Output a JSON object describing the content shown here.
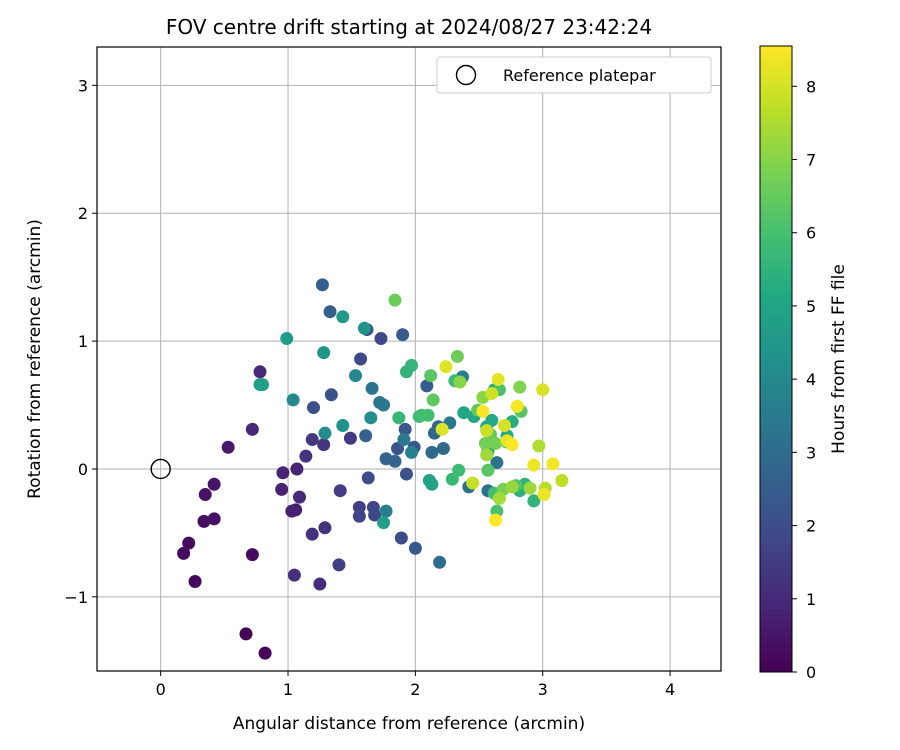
{
  "chart_data": {
    "type": "scatter",
    "title": "FOV centre drift starting at 2024/08/27 23:42:24",
    "xlabel": "Angular distance from reference (arcmin)",
    "ylabel": "Rotation from reference (arcmin)",
    "xlim": [
      -0.5,
      4.4
    ],
    "ylim": [
      -1.58,
      3.3
    ],
    "xticks": [
      0,
      1,
      2,
      3,
      4
    ],
    "xtick_labels": [
      "0",
      "1",
      "2",
      "3",
      "4"
    ],
    "yticks": [
      -1,
      0,
      1,
      2,
      3
    ],
    "ytick_labels": [
      "−1",
      "0",
      "1",
      "2",
      "3"
    ],
    "grid": true,
    "legend": {
      "position": "top-right",
      "entries": [
        "Reference platepar"
      ]
    },
    "reference_point": {
      "x": 0,
      "y": 0,
      "label": "Reference platepar",
      "marker": "open-circle"
    },
    "colorbar": {
      "label": "Hours from first FF file",
      "min": 0,
      "max": 8.55,
      "ticks": [
        0,
        1,
        2,
        3,
        4,
        5,
        6,
        7,
        8
      ],
      "tick_labels": [
        "0",
        "1",
        "2",
        "3",
        "4",
        "5",
        "6",
        "7",
        "8"
      ],
      "colormap": "viridis"
    },
    "points": [
      {
        "x": 0.67,
        "y": -1.29,
        "h": 0.05
      },
      {
        "x": 0.82,
        "y": -1.44,
        "h": 0.1
      },
      {
        "x": 0.27,
        "y": -0.88,
        "h": 0.15
      },
      {
        "x": 0.18,
        "y": -0.66,
        "h": 0.2
      },
      {
        "x": 0.22,
        "y": -0.58,
        "h": 0.25
      },
      {
        "x": 0.72,
        "y": -0.67,
        "h": 0.3
      },
      {
        "x": 0.34,
        "y": -0.41,
        "h": 0.35
      },
      {
        "x": 0.42,
        "y": -0.39,
        "h": 0.4
      },
      {
        "x": 0.35,
        "y": -0.2,
        "h": 0.45
      },
      {
        "x": 0.42,
        "y": -0.12,
        "h": 0.5
      },
      {
        "x": 0.53,
        "y": 0.17,
        "h": 0.6
      },
      {
        "x": 1.06,
        "y": -0.32,
        "h": 0.7
      },
      {
        "x": 1.03,
        "y": -0.33,
        "h": 0.75
      },
      {
        "x": 0.95,
        "y": -0.16,
        "h": 0.8
      },
      {
        "x": 0.96,
        "y": -0.03,
        "h": 0.85
      },
      {
        "x": 1.07,
        "y": 0.0,
        "h": 0.9
      },
      {
        "x": 0.72,
        "y": 0.31,
        "h": 0.95
      },
      {
        "x": 0.78,
        "y": 0.76,
        "h": 1.0
      },
      {
        "x": 1.09,
        "y": -0.22,
        "h": 1.05
      },
      {
        "x": 1.25,
        "y": -0.9,
        "h": 1.1
      },
      {
        "x": 1.05,
        "y": -0.83,
        "h": 1.15
      },
      {
        "x": 1.19,
        "y": -0.51,
        "h": 1.2
      },
      {
        "x": 1.29,
        "y": -0.46,
        "h": 1.25
      },
      {
        "x": 1.14,
        "y": 0.1,
        "h": 1.3
      },
      {
        "x": 1.28,
        "y": 0.19,
        "h": 1.35
      },
      {
        "x": 1.19,
        "y": 0.23,
        "h": 1.4
      },
      {
        "x": 1.49,
        "y": 0.24,
        "h": 1.45
      },
      {
        "x": 1.41,
        "y": -0.17,
        "h": 1.5
      },
      {
        "x": 1.4,
        "y": -0.75,
        "h": 1.55
      },
      {
        "x": 1.56,
        "y": -0.3,
        "h": 1.6
      },
      {
        "x": 1.56,
        "y": -0.37,
        "h": 1.7
      },
      {
        "x": 1.67,
        "y": -0.3,
        "h": 1.75
      },
      {
        "x": 1.68,
        "y": -0.36,
        "h": 1.8
      },
      {
        "x": 1.73,
        "y": 1.02,
        "h": 1.85
      },
      {
        "x": 1.57,
        "y": 0.86,
        "h": 1.9
      },
      {
        "x": 1.63,
        "y": -0.07,
        "h": 1.95
      },
      {
        "x": 1.89,
        "y": -0.54,
        "h": 2.0
      },
      {
        "x": 1.2,
        "y": 0.48,
        "h": 2.05
      },
      {
        "x": 1.34,
        "y": 0.58,
        "h": 2.1
      },
      {
        "x": 1.62,
        "y": 1.09,
        "h": 2.15
      },
      {
        "x": 1.93,
        "y": -0.04,
        "h": 2.2
      },
      {
        "x": 1.86,
        "y": 0.16,
        "h": 2.25
      },
      {
        "x": 1.92,
        "y": 0.31,
        "h": 2.3
      },
      {
        "x": 1.99,
        "y": 0.17,
        "h": 2.35
      },
      {
        "x": 2.0,
        "y": -0.62,
        "h": 2.4
      },
      {
        "x": 1.9,
        "y": 1.05,
        "h": 2.45
      },
      {
        "x": 2.09,
        "y": 0.65,
        "h": 2.5
      },
      {
        "x": 1.27,
        "y": 1.44,
        "h": 2.55
      },
      {
        "x": 1.33,
        "y": 1.23,
        "h": 2.6
      },
      {
        "x": 1.61,
        "y": 0.26,
        "h": 2.65
      },
      {
        "x": 1.77,
        "y": 0.08,
        "h": 2.7
      },
      {
        "x": 1.84,
        "y": 0.06,
        "h": 2.75
      },
      {
        "x": 2.15,
        "y": 0.28,
        "h": 2.8
      },
      {
        "x": 2.18,
        "y": 0.33,
        "h": 2.85
      },
      {
        "x": 2.13,
        "y": 0.13,
        "h": 2.9
      },
      {
        "x": 2.22,
        "y": 0.16,
        "h": 2.95
      },
      {
        "x": 2.19,
        "y": -0.73,
        "h": 3.0
      },
      {
        "x": 2.33,
        "y": 0.69,
        "h": 3.1
      },
      {
        "x": 2.42,
        "y": -0.14,
        "h": 3.15
      },
      {
        "x": 2.57,
        "y": -0.17,
        "h": 3.2
      },
      {
        "x": 2.64,
        "y": 0.05,
        "h": 3.25
      },
      {
        "x": 1.66,
        "y": 0.63,
        "h": 3.3
      },
      {
        "x": 1.72,
        "y": 0.52,
        "h": 3.35
      },
      {
        "x": 1.75,
        "y": 0.5,
        "h": 3.4
      },
      {
        "x": 1.91,
        "y": 0.23,
        "h": 3.45
      },
      {
        "x": 2.27,
        "y": 0.36,
        "h": 3.5
      },
      {
        "x": 2.37,
        "y": 0.72,
        "h": 3.55
      },
      {
        "x": 1.77,
        "y": -0.33,
        "h": 3.6
      },
      {
        "x": 1.97,
        "y": 0.13,
        "h": 3.7
      },
      {
        "x": 1.53,
        "y": 0.73,
        "h": 3.9
      },
      {
        "x": 1.04,
        "y": 0.54,
        "h": 4.0
      },
      {
        "x": 1.29,
        "y": 0.28,
        "h": 4.1
      },
      {
        "x": 1.65,
        "y": 0.4,
        "h": 4.2
      },
      {
        "x": 1.43,
        "y": 0.34,
        "h": 4.3
      },
      {
        "x": 1.6,
        "y": 1.1,
        "h": 4.4
      },
      {
        "x": 1.28,
        "y": 0.91,
        "h": 4.5
      },
      {
        "x": 1.43,
        "y": 1.19,
        "h": 4.6
      },
      {
        "x": 0.99,
        "y": 1.02,
        "h": 4.7
      },
      {
        "x": 0.78,
        "y": 0.66,
        "h": 4.75
      },
      {
        "x": 0.8,
        "y": 0.66,
        "h": 4.8
      },
      {
        "x": 1.75,
        "y": -0.42,
        "h": 4.85
      },
      {
        "x": 2.11,
        "y": -0.09,
        "h": 4.9
      },
      {
        "x": 2.13,
        "y": -0.12,
        "h": 4.95
      },
      {
        "x": 2.38,
        "y": 0.44,
        "h": 5.0
      },
      {
        "x": 2.46,
        "y": 0.41,
        "h": 5.05
      },
      {
        "x": 2.56,
        "y": 0.33,
        "h": 5.1
      },
      {
        "x": 2.6,
        "y": 0.38,
        "h": 5.15
      },
      {
        "x": 2.72,
        "y": 0.26,
        "h": 5.2
      },
      {
        "x": 2.57,
        "y": 0.14,
        "h": 5.25
      },
      {
        "x": 2.62,
        "y": 0.62,
        "h": 5.3
      },
      {
        "x": 2.76,
        "y": 0.37,
        "h": 5.35
      },
      {
        "x": 2.82,
        "y": -0.17,
        "h": 5.4
      },
      {
        "x": 2.86,
        "y": -0.12,
        "h": 5.45
      },
      {
        "x": 2.93,
        "y": -0.25,
        "h": 5.5
      },
      {
        "x": 1.93,
        "y": 0.76,
        "h": 5.55
      },
      {
        "x": 1.97,
        "y": 0.81,
        "h": 5.6
      },
      {
        "x": 1.87,
        "y": 0.4,
        "h": 5.65
      },
      {
        "x": 2.29,
        "y": -0.08,
        "h": 5.7
      },
      {
        "x": 2.31,
        "y": 0.69,
        "h": 5.75
      },
      {
        "x": 2.34,
        "y": -0.01,
        "h": 5.8
      },
      {
        "x": 2.03,
        "y": 0.41,
        "h": 5.85
      },
      {
        "x": 2.05,
        "y": 0.42,
        "h": 5.9
      },
      {
        "x": 2.1,
        "y": 0.42,
        "h": 5.95
      },
      {
        "x": 2.62,
        "y": -0.19,
        "h": 6.0
      },
      {
        "x": 2.64,
        "y": -0.33,
        "h": 6.05
      },
      {
        "x": 2.66,
        "y": 0.62,
        "h": 6.1
      },
      {
        "x": 2.72,
        "y": 0.21,
        "h": 6.15
      },
      {
        "x": 2.79,
        "y": -0.13,
        "h": 6.2
      },
      {
        "x": 2.83,
        "y": 0.45,
        "h": 6.25
      },
      {
        "x": 2.57,
        "y": -0.01,
        "h": 6.3
      },
      {
        "x": 2.12,
        "y": 0.73,
        "h": 6.35
      },
      {
        "x": 2.14,
        "y": 0.54,
        "h": 6.4
      },
      {
        "x": 2.49,
        "y": 0.46,
        "h": 6.45
      },
      {
        "x": 2.59,
        "y": 0.27,
        "h": 6.5
      },
      {
        "x": 1.84,
        "y": 1.32,
        "h": 6.6
      },
      {
        "x": 2.33,
        "y": 0.88,
        "h": 6.65
      },
      {
        "x": 2.55,
        "y": 0.2,
        "h": 6.7
      },
      {
        "x": 2.63,
        "y": 0.2,
        "h": 6.75
      },
      {
        "x": 2.69,
        "y": -0.16,
        "h": 6.8
      },
      {
        "x": 2.82,
        "y": 0.64,
        "h": 6.9
      },
      {
        "x": 2.35,
        "y": 0.68,
        "h": 7.0
      },
      {
        "x": 2.53,
        "y": 0.56,
        "h": 7.1
      },
      {
        "x": 2.76,
        "y": -0.14,
        "h": 7.2
      },
      {
        "x": 2.9,
        "y": -0.15,
        "h": 7.3
      },
      {
        "x": 2.56,
        "y": 0.11,
        "h": 7.35
      },
      {
        "x": 2.66,
        "y": -0.23,
        "h": 7.4
      },
      {
        "x": 2.97,
        "y": 0.18,
        "h": 7.5
      },
      {
        "x": 3.02,
        "y": -0.15,
        "h": 7.6
      },
      {
        "x": 3.15,
        "y": -0.09,
        "h": 7.7
      },
      {
        "x": 2.45,
        "y": -0.11,
        "h": 7.8
      },
      {
        "x": 2.56,
        "y": 0.3,
        "h": 7.85
      },
      {
        "x": 2.6,
        "y": 0.59,
        "h": 7.9
      },
      {
        "x": 2.7,
        "y": 0.34,
        "h": 8.0
      },
      {
        "x": 3.0,
        "y": 0.62,
        "h": 8.05
      },
      {
        "x": 2.21,
        "y": 0.31,
        "h": 8.1
      },
      {
        "x": 2.24,
        "y": 0.8,
        "h": 8.15
      },
      {
        "x": 2.65,
        "y": 0.7,
        "h": 8.2
      },
      {
        "x": 2.72,
        "y": 0.22,
        "h": 8.25
      },
      {
        "x": 2.93,
        "y": 0.03,
        "h": 8.3
      },
      {
        "x": 3.01,
        "y": -0.2,
        "h": 8.35
      },
      {
        "x": 3.08,
        "y": 0.04,
        "h": 8.4
      },
      {
        "x": 2.8,
        "y": 0.49,
        "h": 8.45
      },
      {
        "x": 2.53,
        "y": 0.45,
        "h": 8.5
      },
      {
        "x": 2.63,
        "y": -0.4,
        "h": 8.55
      },
      {
        "x": 2.76,
        "y": 0.19,
        "h": 8.55
      }
    ]
  }
}
